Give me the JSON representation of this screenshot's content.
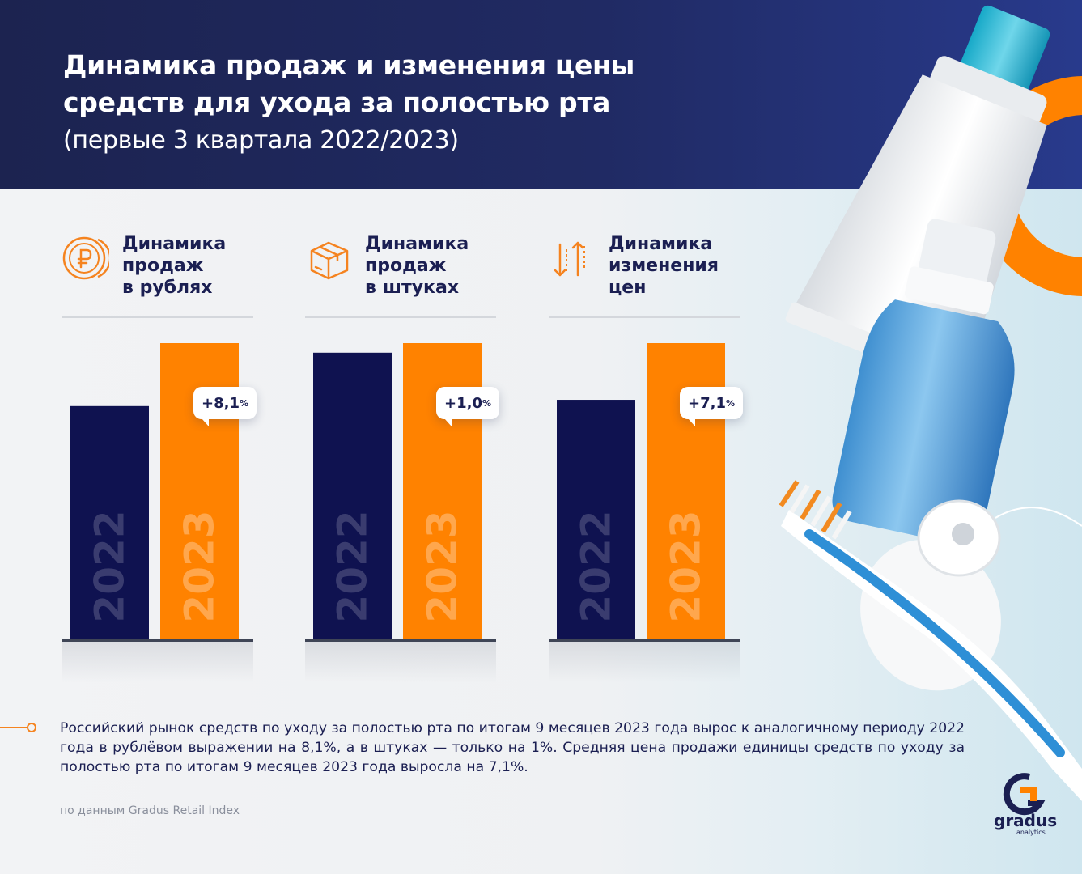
{
  "header": {
    "title_line1": "Динамика продаж и изменения цены",
    "title_line2": "средств для ухода за полостью рта",
    "subtitle": "(первые 3 квартала 2022/2023)"
  },
  "colors": {
    "header_bg": "#202a63",
    "bar_2022": "#0f1250",
    "bar_2023": "#ff8200",
    "accent": "#f5831f",
    "text_dark": "#1b1f52"
  },
  "chart_data": [
    {
      "type": "bar",
      "title": "Динамика продаж в рублях",
      "title_lines": [
        "Динамика",
        "продаж",
        "в рублях"
      ],
      "icon": "ruble-coin-icon",
      "categories": [
        "2022",
        "2023"
      ],
      "values": [
        100,
        108.1
      ],
      "change_label": "+8,1%",
      "change_value": "+8,1",
      "change_unit": "%"
    },
    {
      "type": "bar",
      "title": "Динамика продаж в штуках",
      "title_lines": [
        "Динамика",
        "продаж",
        "в штуках"
      ],
      "icon": "box-icon",
      "categories": [
        "2022",
        "2023"
      ],
      "values": [
        100,
        101.0
      ],
      "change_label": "+1,0%",
      "change_value": "+1,0",
      "change_unit": "%"
    },
    {
      "type": "bar",
      "title": "Динамика изменения цен",
      "title_lines": [
        "Динамика",
        "изменения",
        "цен"
      ],
      "icon": "up-down-arrows-icon",
      "categories": [
        "2022",
        "2023"
      ],
      "values": [
        100,
        107.1
      ],
      "change_label": "+7,1%",
      "change_value": "+7,1",
      "change_unit": "%"
    }
  ],
  "description": "Российский рынок средств по уходу за полостью рта по итогам 9 месяцев 2023 года вырос к аналогичному периоду 2022 года в рублёвом выражении на 8,1%, а в штуках — только на 1%. Средняя цена продажи единицы средств по уходу за полостью рта по итогам 9 месяцев 2023 года выросла на 7,1%.",
  "source": "по данным Gradus Retail Index",
  "logo": {
    "name": "gradus",
    "sub": "analytics"
  }
}
